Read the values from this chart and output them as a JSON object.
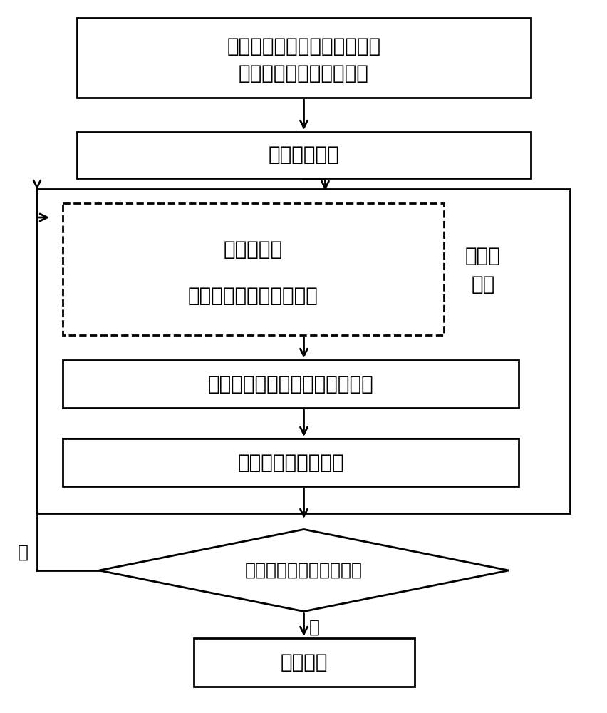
{
  "bg_color": "#ffffff",
  "line_color": "#000000",
  "box1_text_line1": "增加虚拟支路，形成扩展网络",
  "box1_text_line2": "（同步优化主网和孤岛）",
  "box2_text": "生成初始种群",
  "dashed_box_text_line1": "切负荷算子",
  "dashed_box_text_line2": "（协调两种切负荷方式）",
  "side_text_line1": "计算适",
  "side_text_line2": "应度",
  "box3_text": "遗传算子（选择、交叉、变异）",
  "box4_text": "修正不可行拓扑结构",
  "diamond_text": "满足遗传算法终止条件？",
  "no_label": "否",
  "yes_label": "是",
  "box5_text": "输出结果",
  "lw": 2.0,
  "arrow_mutation_scale": 18
}
